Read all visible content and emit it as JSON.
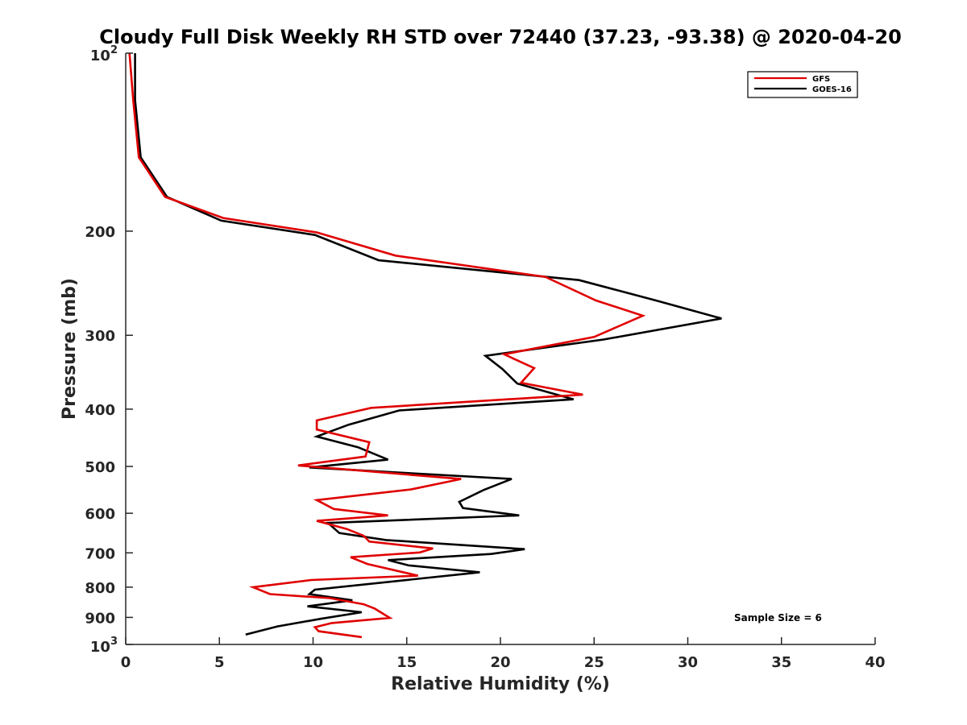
{
  "chart_data": {
    "type": "line",
    "title": "Cloudy Full Disk Weekly RH STD over 72440 (37.23, -93.38) @ 2020-04-20",
    "xlabel": "Relative Humidity (%)",
    "ylabel": "Pressure (mb)",
    "xlim": [
      0,
      40
    ],
    "ylim": [
      100,
      1000
    ],
    "y_scale": "log",
    "y_reversed": true,
    "grid": false,
    "legend_position": "top-right",
    "x_ticks": [
      0,
      5,
      10,
      15,
      20,
      25,
      30,
      35,
      40
    ],
    "y_ticks": [
      {
        "value": 100,
        "base": "10",
        "exp": "2"
      },
      {
        "value": 200,
        "label": "200"
      },
      {
        "value": 300,
        "label": "300"
      },
      {
        "value": 400,
        "label": "400"
      },
      {
        "value": 500,
        "label": "500"
      },
      {
        "value": 600,
        "label": "600"
      },
      {
        "value": 700,
        "label": "700"
      },
      {
        "value": 800,
        "label": "800"
      },
      {
        "value": 900,
        "label": "900"
      },
      {
        "value": 1000,
        "base": "10",
        "exp": "3"
      }
    ],
    "annotation": "Sample Size = 6",
    "series": [
      {
        "name": "GFS",
        "color": "#e00000",
        "points": [
          [
            0.2,
            100
          ],
          [
            0.4,
            120
          ],
          [
            0.7,
            150
          ],
          [
            2.1,
            175
          ],
          [
            5.2,
            190
          ],
          [
            10.2,
            201
          ],
          [
            14.4,
            220
          ],
          [
            22.4,
            239
          ],
          [
            25.1,
            262
          ],
          [
            27.6,
            278
          ],
          [
            25,
            302
          ],
          [
            20.2,
            323
          ],
          [
            21.8,
            341
          ],
          [
            21.1,
            361
          ],
          [
            24.4,
            378
          ],
          [
            13.1,
            398
          ],
          [
            10.2,
            418
          ],
          [
            10.2,
            433
          ],
          [
            13,
            455
          ],
          [
            12.8,
            481
          ],
          [
            9.2,
            498
          ],
          [
            17.9,
            525
          ],
          [
            15.2,
            547
          ],
          [
            10.2,
            570
          ],
          [
            11.1,
            590
          ],
          [
            14,
            605
          ],
          [
            10.2,
            618
          ],
          [
            11.8,
            638
          ],
          [
            12.7,
            655
          ],
          [
            13,
            670
          ],
          [
            16.4,
            688
          ],
          [
            15.7,
            699
          ],
          [
            12,
            712
          ],
          [
            12.9,
            731
          ],
          [
            15.6,
            765
          ],
          [
            9.9,
            778
          ],
          [
            6.8,
            800
          ],
          [
            7.7,
            822
          ],
          [
            10.9,
            835
          ],
          [
            12.7,
            855
          ],
          [
            13.3,
            870
          ],
          [
            14.1,
            902
          ],
          [
            11,
            920
          ],
          [
            10.1,
            935
          ],
          [
            10.3,
            950
          ],
          [
            12.6,
            972
          ]
        ]
      },
      {
        "name": "GOES-16",
        "color": "#000000",
        "points": [
          [
            0.5,
            100
          ],
          [
            0.5,
            120
          ],
          [
            0.8,
            150
          ],
          [
            2.2,
            175
          ],
          [
            5.1,
            192
          ],
          [
            10.1,
            203
          ],
          [
            13.5,
            224
          ],
          [
            24.2,
            242
          ],
          [
            28.3,
            262
          ],
          [
            31.8,
            281
          ],
          [
            25.5,
            305
          ],
          [
            19.2,
            325
          ],
          [
            20.1,
            342
          ],
          [
            20.9,
            362
          ],
          [
            23.9,
            385
          ],
          [
            14.6,
            402
          ],
          [
            11.9,
            425
          ],
          [
            10.2,
            445
          ],
          [
            12.4,
            464
          ],
          [
            14,
            487
          ],
          [
            9.8,
            502
          ],
          [
            20.6,
            525
          ],
          [
            19.1,
            548
          ],
          [
            17.8,
            574
          ],
          [
            18,
            588
          ],
          [
            21,
            605
          ],
          [
            10.8,
            623
          ],
          [
            11.4,
            648
          ],
          [
            13.9,
            666
          ],
          [
            21.3,
            690
          ],
          [
            19.5,
            703
          ],
          [
            14,
            720
          ],
          [
            15.1,
            735
          ],
          [
            18.9,
            755
          ],
          [
            10.1,
            808
          ],
          [
            9.8,
            822
          ],
          [
            12.1,
            842
          ],
          [
            9.7,
            862
          ],
          [
            12.6,
            882
          ],
          [
            10.4,
            905
          ],
          [
            8.1,
            932
          ],
          [
            6.4,
            962
          ]
        ]
      }
    ]
  }
}
